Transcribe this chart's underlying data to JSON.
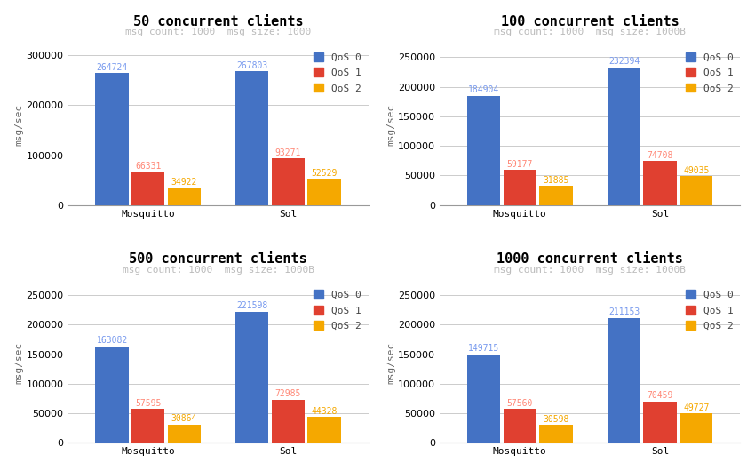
{
  "subplots": [
    {
      "title": "50 concurrent clients",
      "subtitle": "msg count: 1000  msg size: 1000",
      "mosquitto": [
        264724,
        66331,
        34922
      ],
      "sol": [
        267803,
        93271,
        52529
      ],
      "ylim": [
        0,
        320000
      ],
      "yticks": [
        0,
        100000,
        200000,
        300000
      ]
    },
    {
      "title": "100 concurrent clients",
      "subtitle": "msg count: 1000  msg size: 1000B",
      "mosquitto": [
        184904,
        59177,
        31885
      ],
      "sol": [
        232394,
        74708,
        49035
      ],
      "ylim": [
        0,
        270000
      ],
      "yticks": [
        0,
        50000,
        100000,
        150000,
        200000,
        250000
      ]
    },
    {
      "title": "500 concurrent clients",
      "subtitle": "msg count: 1000  msg size: 1000B",
      "mosquitto": [
        163082,
        57595,
        30864
      ],
      "sol": [
        221598,
        72985,
        44328
      ],
      "ylim": [
        0,
        270000
      ],
      "yticks": [
        0,
        50000,
        100000,
        150000,
        200000,
        250000
      ]
    },
    {
      "title": "1000 concurrent clients",
      "subtitle": "msg count: 1000  msg size: 1000B",
      "mosquitto": [
        149715,
        57560,
        30598
      ],
      "sol": [
        211153,
        70459,
        49727
      ],
      "ylim": [
        0,
        270000
      ],
      "yticks": [
        0,
        50000,
        100000,
        150000,
        200000,
        250000
      ]
    }
  ],
  "bar_colors": [
    "#4472C4",
    "#E04030",
    "#F5A800"
  ],
  "label_colors": [
    "#7799EE",
    "#FF8877",
    "#F5A800"
  ],
  "qos_labels": [
    "QoS 0",
    "QoS 1",
    "QoS 2"
  ],
  "broker_labels": [
    "Mosquitto",
    "Sol"
  ],
  "ylabel": "msg/sec",
  "background_color": "#FFFFFF",
  "grid_color": "#CCCCCC",
  "title_fontsize": 11,
  "subtitle_fontsize": 8,
  "tick_fontsize": 8,
  "label_fontsize": 7,
  "bar_width": 0.18,
  "group_centers": [
    0.3,
    1.0
  ]
}
